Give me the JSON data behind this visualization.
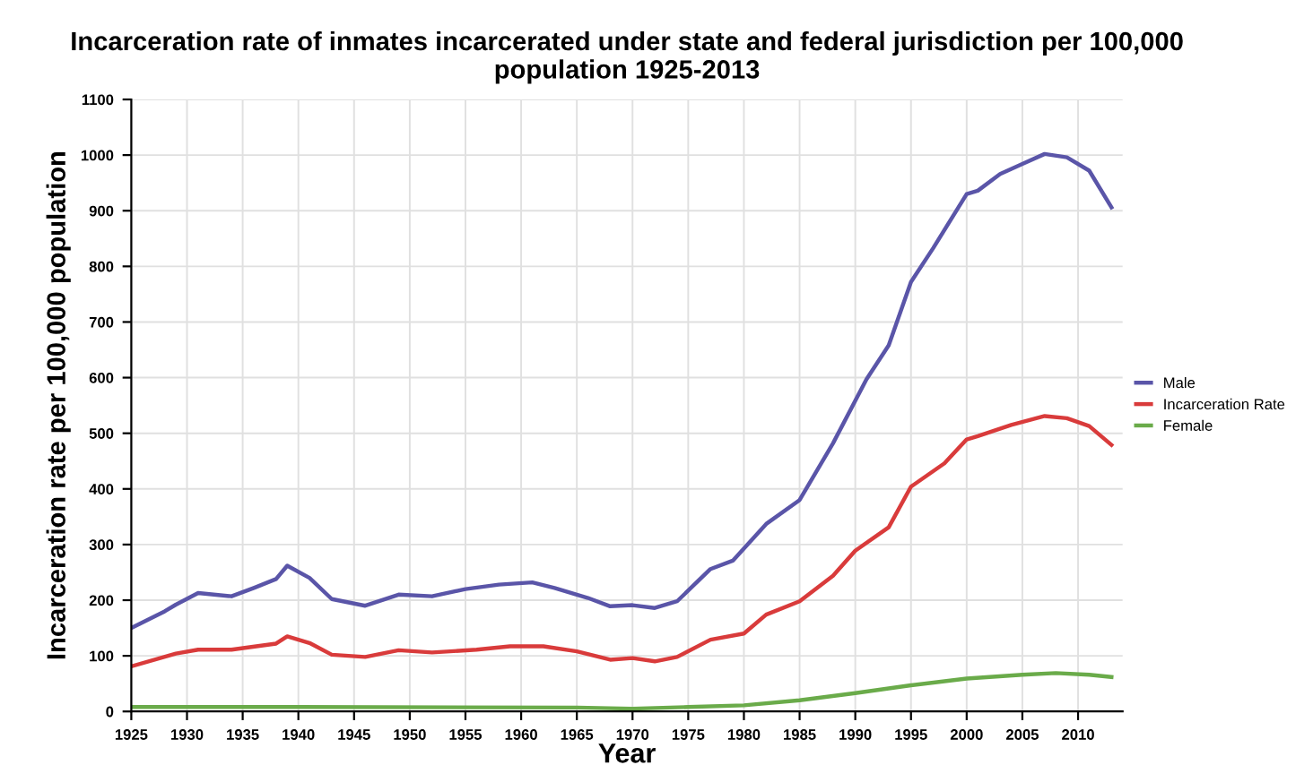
{
  "chart_data": {
    "type": "line",
    "title": "Incarceration rate of inmates incarcerated under state and federal jurisdiction per 100,000 population 1925-2013",
    "xlabel": "Year",
    "ylabel": "Incarceration rate per 100,000 population",
    "xlim": [
      1925,
      2014
    ],
    "xticks": [
      1925,
      1930,
      1935,
      1940,
      1945,
      1950,
      1955,
      1960,
      1965,
      1970,
      1975,
      1980,
      1985,
      1990,
      1995,
      2000,
      2005,
      2010
    ],
    "ylim": [
      0,
      1100
    ],
    "yticks": [
      0,
      100,
      200,
      300,
      400,
      500,
      600,
      700,
      800,
      900,
      1000,
      1100
    ],
    "grid": true,
    "legend": "right",
    "marker": "none",
    "line_style": "solid",
    "series": [
      {
        "name": "Male",
        "color": "#5a55a8",
        "x": [
          1925,
          1928,
          1929,
          1931,
          1934,
          1936,
          1938,
          1939,
          1941,
          1943,
          1946,
          1949,
          1952,
          1955,
          1958,
          1961,
          1963,
          1966,
          1968,
          1970,
          1972,
          1974,
          1977,
          1979,
          1982,
          1985,
          1988,
          1991,
          1993,
          1995,
          1997,
          2000,
          2001,
          2003,
          2005,
          2007,
          2009,
          2011,
          2013
        ],
        "values": [
          150,
          180,
          192,
          213,
          207,
          222,
          238,
          262,
          240,
          202,
          190,
          210,
          207,
          220,
          228,
          232,
          222,
          204,
          189,
          191,
          186,
          198,
          256,
          271,
          337,
          380,
          482,
          597,
          658,
          772,
          833,
          930,
          936,
          966,
          984,
          1002,
          996,
          972,
          906
        ]
      },
      {
        "name": "Incarceration Rate",
        "color": "#d93b3b",
        "x": [
          1925,
          1929,
          1931,
          1934,
          1938,
          1939,
          1941,
          1943,
          1946,
          1949,
          1952,
          1956,
          1959,
          1962,
          1965,
          1968,
          1970,
          1972,
          1974,
          1977,
          1980,
          1982,
          1985,
          1988,
          1990,
          1993,
          1995,
          1998,
          2000,
          2001,
          2004,
          2007,
          2009,
          2011,
          2013
        ],
        "values": [
          81,
          104,
          111,
          111,
          122,
          135,
          123,
          102,
          98,
          110,
          106,
          111,
          117,
          117,
          108,
          93,
          96,
          90,
          98,
          129,
          140,
          174,
          198,
          244,
          289,
          331,
          404,
          446,
          489,
          495,
          515,
          531,
          527,
          513,
          479
        ]
      },
      {
        "name": "Female",
        "color": "#6aab4a",
        "x": [
          1925,
          1940,
          1965,
          1970,
          1975,
          1980,
          1985,
          1990,
          1995,
          2000,
          2005,
          2008,
          2011,
          2013
        ],
        "values": [
          8,
          8,
          7,
          5,
          8,
          11,
          20,
          33,
          47,
          59,
          66,
          69,
          66,
          62
        ]
      }
    ]
  }
}
